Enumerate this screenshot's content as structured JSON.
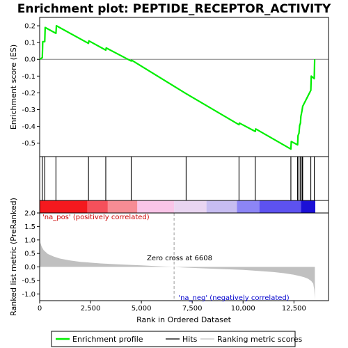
{
  "chart_data": {
    "type": "line",
    "title": "Enrichment plot: PEPTIDE_RECEPTOR_ACTIVITY",
    "x_axis": {
      "label": "Rank in Ordered Dataset",
      "range": [
        0,
        14200
      ],
      "ticks": [
        0,
        2500,
        5000,
        7500,
        10000,
        12500
      ],
      "tick_labels": [
        "0",
        "2,500",
        "5,000",
        "7,500",
        "10,000",
        "12,500"
      ]
    },
    "es_panel": {
      "ylabel": "Enrichment score (ES)",
      "ylim": [
        -0.58,
        0.25
      ],
      "ticks": [
        0.2,
        0.1,
        0.0,
        -0.1,
        -0.2,
        -0.3,
        -0.4,
        -0.5
      ],
      "tick_labels": [
        "0.2",
        "0.1",
        "0.0",
        "-0.1",
        "-0.2",
        "-0.3",
        "-0.4",
        "-0.5"
      ],
      "zero_line": true,
      "series": [
        {
          "name": "Enrichment profile",
          "color": "#00ee00",
          "x": [
            0,
            130,
            150,
            250,
            270,
            800,
            820,
            2400,
            2420,
            3250,
            3270,
            4500,
            4520,
            7200,
            9800,
            9820,
            10600,
            10620,
            12350,
            12370,
            12680,
            12700,
            12750,
            12780,
            12820,
            12840,
            12900,
            12930,
            13330,
            13350,
            13500,
            13520
          ],
          "y": [
            0.0,
            0.01,
            0.105,
            0.105,
            0.19,
            0.155,
            0.2,
            0.095,
            0.11,
            0.055,
            0.068,
            -0.01,
            -0.005,
            -0.205,
            -0.39,
            -0.38,
            -0.43,
            -0.415,
            -0.535,
            -0.49,
            -0.51,
            -0.455,
            -0.44,
            -0.395,
            -0.38,
            -0.34,
            -0.305,
            -0.28,
            -0.185,
            -0.1,
            -0.115,
            0.0
          ]
        }
      ]
    },
    "hits": {
      "label": "Hits",
      "positions": [
        130,
        250,
        800,
        2400,
        3250,
        4500,
        7200,
        9800,
        10600,
        12350,
        12680,
        12750,
        12820,
        12900,
        12930,
        13330,
        13500
      ]
    },
    "color_band": {
      "segments": [
        {
          "from": 0,
          "to": 2350,
          "color": "#f4191e"
        },
        {
          "from": 2350,
          "to": 3350,
          "color": "#f5505b"
        },
        {
          "from": 3350,
          "to": 4800,
          "color": "#f78c94"
        },
        {
          "from": 4800,
          "to": 6608,
          "color": "#f9c5e8"
        },
        {
          "from": 6608,
          "to": 8200,
          "color": "#e9d5f1"
        },
        {
          "from": 8200,
          "to": 9700,
          "color": "#c7bdf1"
        },
        {
          "from": 9700,
          "to": 10800,
          "color": "#8c85f5"
        },
        {
          "from": 10800,
          "to": 12850,
          "color": "#5d52f0"
        },
        {
          "from": 12850,
          "to": 13550,
          "color": "#1b10d6"
        }
      ]
    },
    "metric_panel": {
      "ylabel": "Ranked list metric (PreRanked)",
      "ylim": [
        -1.25,
        2.0
      ],
      "ticks": [
        2.0,
        1.5,
        1.0,
        0.5,
        0.0,
        -0.5,
        -1.0
      ],
      "tick_labels": [
        "2.0",
        "1.5",
        "1.0",
        "0.5",
        "0.0",
        "-0.5",
        "-1.0"
      ],
      "fill_color": "#c0c0c0",
      "profile": {
        "x": [
          0,
          30,
          100,
          200,
          400,
          700,
          1000,
          1500,
          2000,
          3000,
          4000,
          5000,
          6000,
          6608,
          7000,
          8000,
          9000,
          10000,
          10800,
          11500,
          12000,
          12500,
          12800,
          13000,
          13200,
          13350,
          13450,
          13500,
          13530
        ],
        "y": [
          1.2,
          0.9,
          0.75,
          0.62,
          0.48,
          0.38,
          0.31,
          0.24,
          0.19,
          0.13,
          0.09,
          0.06,
          0.02,
          0.0,
          -0.02,
          -0.05,
          -0.08,
          -0.11,
          -0.15,
          -0.19,
          -0.23,
          -0.29,
          -0.34,
          -0.38,
          -0.44,
          -0.52,
          -0.62,
          -0.85,
          -1.2
        ]
      },
      "zero_cross": 6608
    },
    "annotations": {
      "pos_label": "'na_pos' (positively correlated)",
      "neg_label": "'na_neg' (negatively correlated)",
      "zero_cross_label": "Zero cross at 6608",
      "pos_color": "#cc0000",
      "neg_color": "#0000cc"
    },
    "legend": {
      "placement": "bottom",
      "entries": [
        {
          "label": "Enrichment profile",
          "color": "#00ee00"
        },
        {
          "label": "Hits",
          "color": "#000000"
        },
        {
          "label": "Ranking metric scores",
          "color": "#c0c0c0"
        }
      ]
    }
  }
}
